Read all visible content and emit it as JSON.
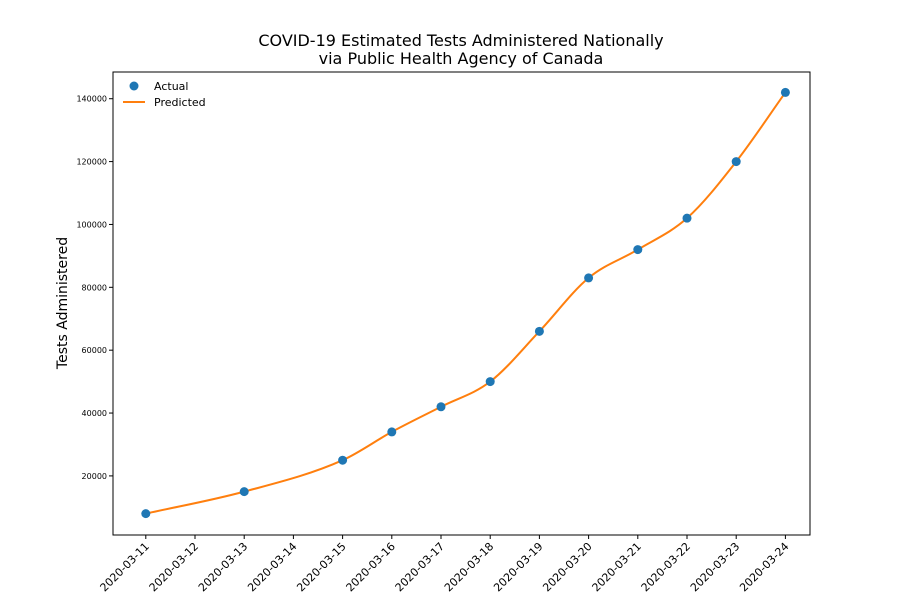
{
  "chart_data": {
    "type": "line",
    "title_line1": "COVID-19 Estimated Tests Administered Nationally",
    "title_line2": "via Public Health Agency of Canada",
    "xlabel": "",
    "ylabel": "Tests Administered",
    "x_ticks": [
      "2020-03-11",
      "2020-03-12",
      "2020-03-13",
      "2020-03-14",
      "2020-03-15",
      "2020-03-16",
      "2020-03-17",
      "2020-03-18",
      "2020-03-19",
      "2020-03-20",
      "2020-03-21",
      "2020-03-22",
      "2020-03-23",
      "2020-03-24"
    ],
    "xlim": [
      "2020-03-10 08:00",
      "2020-03-24 12:00"
    ],
    "y_ticks": [
      20000,
      40000,
      60000,
      80000,
      100000,
      120000,
      140000
    ],
    "y_tick_labels": [
      "20000",
      "40000",
      "60000",
      "80000",
      "100000",
      "120000",
      "140000"
    ],
    "ylim": [
      1200,
      148500
    ],
    "legend_position": "top-left",
    "grid": false,
    "series": [
      {
        "name": "Actual",
        "style": "markers",
        "color": "#1f77b4",
        "points": [
          {
            "x": "2020-03-11 00:00",
            "y": 8000
          },
          {
            "x": "2020-03-13 00:00",
            "y": 15000
          },
          {
            "x": "2020-03-15 00:00",
            "y": 25000
          },
          {
            "x": "2020-03-16 00:00",
            "y": 34000
          },
          {
            "x": "2020-03-17 00:00",
            "y": 42000
          },
          {
            "x": "2020-03-18 00:00",
            "y": 50000
          },
          {
            "x": "2020-03-19 00:00",
            "y": 66000
          },
          {
            "x": "2020-03-20 00:00",
            "y": 83000
          },
          {
            "x": "2020-03-21 00:00",
            "y": 92000
          },
          {
            "x": "2020-03-22 00:00",
            "y": 102000
          },
          {
            "x": "2020-03-23 00:00",
            "y": 120000
          },
          {
            "x": "2020-03-24 00:00",
            "y": 142000
          }
        ]
      },
      {
        "name": "Predicted",
        "style": "line",
        "color": "#ff7f0e",
        "points": [
          {
            "x": "2020-03-11 00:00",
            "y": 8000
          },
          {
            "x": "2020-03-13 00:00",
            "y": 15000
          },
          {
            "x": "2020-03-15 00:00",
            "y": 25000
          },
          {
            "x": "2020-03-16 00:00",
            "y": 34000
          },
          {
            "x": "2020-03-17 00:00",
            "y": 42000
          },
          {
            "x": "2020-03-18 00:00",
            "y": 50000
          },
          {
            "x": "2020-03-19 00:00",
            "y": 66000
          },
          {
            "x": "2020-03-20 00:00",
            "y": 83000
          },
          {
            "x": "2020-03-21 00:00",
            "y": 92000
          },
          {
            "x": "2020-03-22 00:00",
            "y": 102000
          },
          {
            "x": "2020-03-23 00:00",
            "y": 120000
          },
          {
            "x": "2020-03-24 00:00",
            "y": 142000
          }
        ]
      }
    ]
  }
}
